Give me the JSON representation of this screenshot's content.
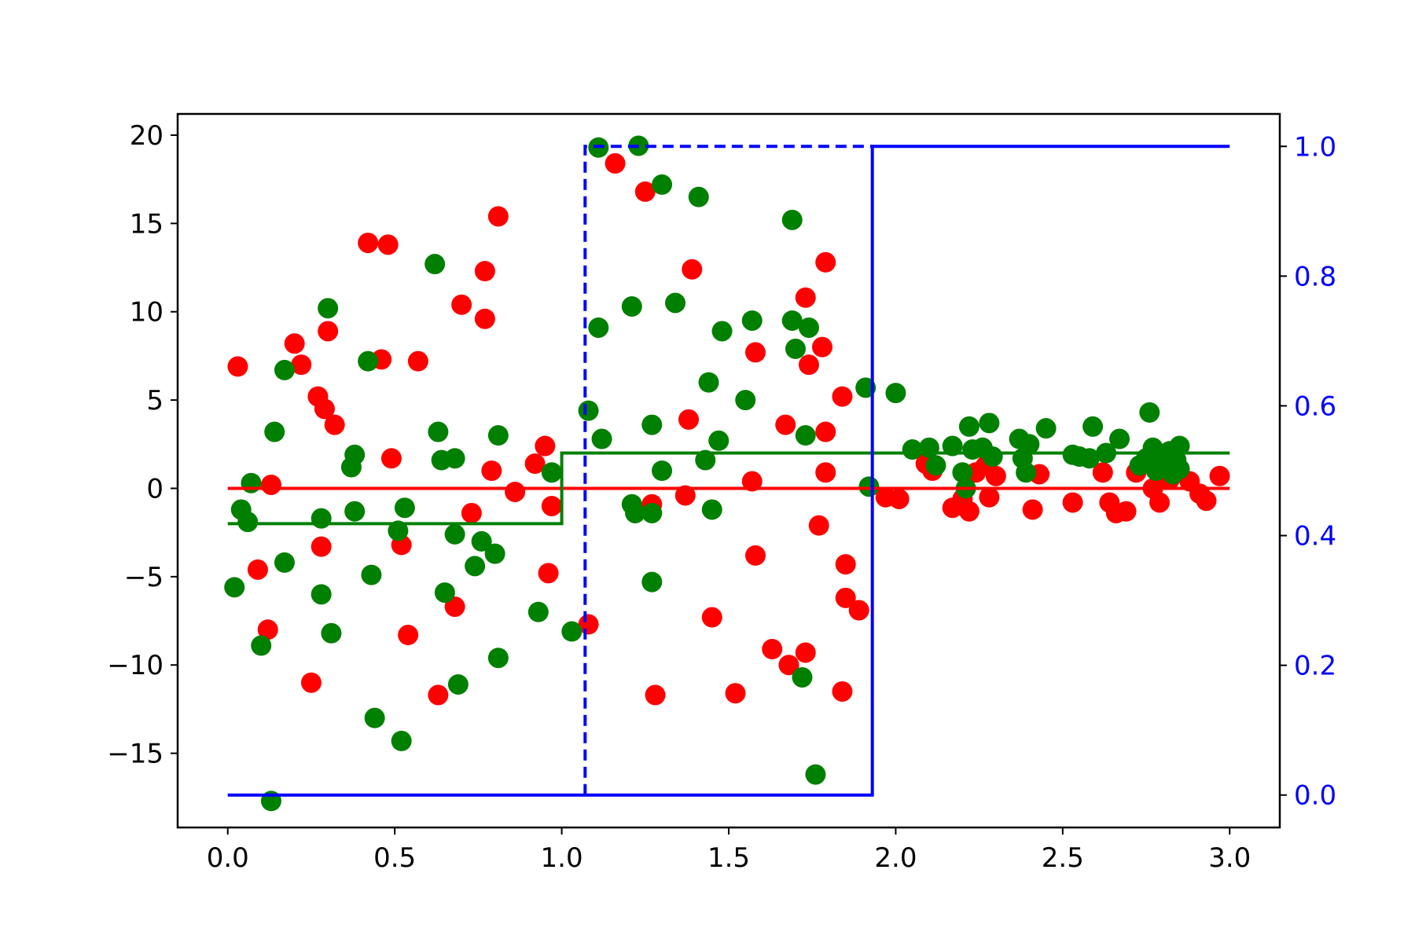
{
  "chart_data": {
    "type": "scatter",
    "title": "",
    "xlabel": "",
    "ylabel": "",
    "y2label": "",
    "grid": false,
    "legend": "none",
    "xlim": [
      -0.15,
      3.15
    ],
    "ylim": [
      -19.2,
      21.2
    ],
    "y2lim": [
      -0.05,
      1.05
    ],
    "xticks": [
      0.0,
      0.5,
      1.0,
      1.5,
      2.0,
      2.5,
      3.0
    ],
    "xtick_labels": [
      "0.0",
      "0.5",
      "1.0",
      "1.5",
      "2.0",
      "2.5",
      "3.0"
    ],
    "yticks": [
      20,
      15,
      10,
      5,
      0,
      -5,
      -10,
      -15
    ],
    "ytick_labels": [
      "20",
      "15",
      "10",
      "5",
      "0",
      "−5",
      "−10",
      "−15"
    ],
    "y2ticks": [
      1.0,
      0.8,
      0.6,
      0.4,
      0.2,
      0.0
    ],
    "y2tick_labels": [
      "1.0",
      "0.8",
      "0.6",
      "0.4",
      "0.2",
      "0.0"
    ],
    "colors": {
      "red": "#ff0000",
      "green": "#008000",
      "blue": "#0000ff",
      "axis": "#000000"
    },
    "series": [
      {
        "kind": "scatter",
        "axis": "left",
        "color": "#ff0000",
        "points": [
          [
            0.03,
            6.9
          ],
          [
            0.12,
            -8.0
          ],
          [
            0.13,
            0.2
          ],
          [
            0.09,
            -4.6
          ],
          [
            0.2,
            8.2
          ],
          [
            0.22,
            7.0
          ],
          [
            0.25,
            -11.0
          ],
          [
            0.27,
            5.2
          ],
          [
            0.29,
            4.5
          ],
          [
            0.3,
            8.9
          ],
          [
            0.32,
            3.6
          ],
          [
            0.28,
            -3.3
          ],
          [
            0.42,
            13.9
          ],
          [
            0.46,
            7.3
          ],
          [
            0.48,
            13.8
          ],
          [
            0.49,
            1.7
          ],
          [
            0.52,
            -3.2
          ],
          [
            0.54,
            -8.3
          ],
          [
            0.57,
            7.2
          ],
          [
            0.63,
            -11.7
          ],
          [
            0.68,
            -6.7
          ],
          [
            0.7,
            10.4
          ],
          [
            0.73,
            -1.4
          ],
          [
            0.77,
            9.6
          ],
          [
            0.77,
            12.3
          ],
          [
            0.79,
            1.0
          ],
          [
            0.81,
            15.4
          ],
          [
            0.86,
            -0.2
          ],
          [
            0.92,
            1.4
          ],
          [
            0.95,
            2.4
          ],
          [
            0.96,
            -4.8
          ],
          [
            0.97,
            -1.0
          ],
          [
            1.08,
            -7.7
          ],
          [
            1.16,
            18.4
          ],
          [
            1.25,
            16.8
          ],
          [
            1.27,
            -0.9
          ],
          [
            1.28,
            -11.7
          ],
          [
            1.37,
            -0.4
          ],
          [
            1.38,
            3.9
          ],
          [
            1.39,
            12.4
          ],
          [
            1.45,
            -7.3
          ],
          [
            1.52,
            -11.6
          ],
          [
            1.57,
            0.4
          ],
          [
            1.58,
            -3.8
          ],
          [
            1.58,
            7.7
          ],
          [
            1.63,
            -9.1
          ],
          [
            1.67,
            3.6
          ],
          [
            1.68,
            -10.0
          ],
          [
            1.73,
            -9.3
          ],
          [
            1.73,
            10.8
          ],
          [
            1.74,
            7.0
          ],
          [
            1.77,
            -2.1
          ],
          [
            1.78,
            8.0
          ],
          [
            1.79,
            0.9
          ],
          [
            1.79,
            3.2
          ],
          [
            1.79,
            12.8
          ],
          [
            1.84,
            5.2
          ],
          [
            1.84,
            -11.5
          ],
          [
            1.85,
            -4.3
          ],
          [
            1.85,
            -6.2
          ],
          [
            1.89,
            -6.9
          ],
          [
            1.97,
            -0.5
          ],
          [
            2.01,
            -0.6
          ],
          [
            2.09,
            1.4
          ],
          [
            2.11,
            1.0
          ],
          [
            2.17,
            -1.1
          ],
          [
            2.2,
            -0.6
          ],
          [
            2.22,
            -1.3
          ],
          [
            2.24,
            0.9
          ],
          [
            2.27,
            1.3
          ],
          [
            2.28,
            -0.5
          ],
          [
            2.3,
            0.7
          ],
          [
            2.41,
            -1.2
          ],
          [
            2.43,
            0.8
          ],
          [
            2.53,
            -0.8
          ],
          [
            2.62,
            0.9
          ],
          [
            2.64,
            -0.8
          ],
          [
            2.66,
            -1.4
          ],
          [
            2.69,
            -1.3
          ],
          [
            2.72,
            0.9
          ],
          [
            2.77,
            0.0
          ],
          [
            2.79,
            -0.8
          ],
          [
            2.82,
            0.5
          ],
          [
            2.88,
            0.4
          ],
          [
            2.91,
            -0.3
          ],
          [
            2.93,
            -0.7
          ],
          [
            2.97,
            0.7
          ]
        ]
      },
      {
        "kind": "scatter",
        "axis": "left",
        "color": "#008000",
        "points": [
          [
            0.02,
            -5.6
          ],
          [
            0.04,
            -1.2
          ],
          [
            0.06,
            -1.9
          ],
          [
            0.07,
            0.3
          ],
          [
            0.1,
            -8.9
          ],
          [
            0.13,
            -17.7
          ],
          [
            0.14,
            3.2
          ],
          [
            0.17,
            6.7
          ],
          [
            0.17,
            -4.2
          ],
          [
            0.28,
            -1.7
          ],
          [
            0.28,
            -6.0
          ],
          [
            0.3,
            10.2
          ],
          [
            0.31,
            -8.2
          ],
          [
            0.37,
            1.2
          ],
          [
            0.38,
            1.9
          ],
          [
            0.38,
            -1.3
          ],
          [
            0.42,
            7.2
          ],
          [
            0.43,
            -4.9
          ],
          [
            0.44,
            -13.0
          ],
          [
            0.51,
            -2.4
          ],
          [
            0.52,
            -14.3
          ],
          [
            0.53,
            -1.1
          ],
          [
            0.62,
            12.7
          ],
          [
            0.63,
            3.2
          ],
          [
            0.64,
            1.6
          ],
          [
            0.65,
            -5.9
          ],
          [
            0.68,
            1.7
          ],
          [
            0.68,
            -2.6
          ],
          [
            0.69,
            -11.1
          ],
          [
            0.74,
            -4.4
          ],
          [
            0.76,
            -3.0
          ],
          [
            0.81,
            3.0
          ],
          [
            0.8,
            -3.7
          ],
          [
            0.81,
            -9.6
          ],
          [
            0.93,
            -7.0
          ],
          [
            0.97,
            0.9
          ],
          [
            1.03,
            -8.1
          ],
          [
            1.08,
            4.4
          ],
          [
            1.11,
            19.3
          ],
          [
            1.11,
            9.1
          ],
          [
            1.12,
            2.8
          ],
          [
            1.21,
            10.3
          ],
          [
            1.23,
            19.4
          ],
          [
            1.21,
            -0.9
          ],
          [
            1.22,
            -1.4
          ],
          [
            1.27,
            3.6
          ],
          [
            1.27,
            -1.4
          ],
          [
            1.27,
            -5.3
          ],
          [
            1.3,
            17.2
          ],
          [
            1.3,
            1.0
          ],
          [
            1.34,
            10.5
          ],
          [
            1.41,
            16.5
          ],
          [
            1.43,
            1.6
          ],
          [
            1.44,
            6.0
          ],
          [
            1.45,
            -1.2
          ],
          [
            1.47,
            2.7
          ],
          [
            1.48,
            8.9
          ],
          [
            1.55,
            5.0
          ],
          [
            1.57,
            9.5
          ],
          [
            1.69,
            15.2
          ],
          [
            1.69,
            9.5
          ],
          [
            1.7,
            7.9
          ],
          [
            1.72,
            -10.7
          ],
          [
            1.73,
            3.0
          ],
          [
            1.74,
            9.1
          ],
          [
            1.76,
            -16.2
          ],
          [
            1.91,
            5.7
          ],
          [
            1.92,
            0.1
          ],
          [
            2.0,
            5.4
          ],
          [
            2.05,
            2.2
          ],
          [
            2.1,
            2.3
          ],
          [
            2.12,
            1.3
          ],
          [
            2.17,
            2.4
          ],
          [
            2.2,
            0.9
          ],
          [
            2.21,
            0.0
          ],
          [
            2.22,
            3.5
          ],
          [
            2.23,
            2.2
          ],
          [
            2.26,
            2.3
          ],
          [
            2.28,
            3.7
          ],
          [
            2.29,
            1.8
          ],
          [
            2.37,
            2.8
          ],
          [
            2.38,
            1.7
          ],
          [
            2.39,
            0.9
          ],
          [
            2.4,
            2.5
          ],
          [
            2.45,
            3.4
          ],
          [
            2.53,
            1.9
          ],
          [
            2.55,
            1.8
          ],
          [
            2.58,
            1.7
          ],
          [
            2.59,
            3.5
          ],
          [
            2.63,
            2.0
          ],
          [
            2.67,
            2.8
          ],
          [
            2.73,
            1.3
          ],
          [
            2.75,
            1.7
          ],
          [
            2.76,
            4.3
          ],
          [
            2.77,
            2.3
          ],
          [
            2.78,
            1.0
          ],
          [
            2.8,
            1.4
          ],
          [
            2.82,
            2.1
          ],
          [
            2.83,
            0.8
          ],
          [
            2.84,
            1.6
          ],
          [
            2.85,
            2.4
          ],
          [
            2.85,
            1.1
          ]
        ]
      },
      {
        "kind": "step",
        "axis": "left",
        "color": "#ff0000",
        "dash": false,
        "points": [
          [
            0.0,
            0.0
          ],
          [
            3.0,
            0.0
          ]
        ]
      },
      {
        "kind": "step",
        "axis": "left",
        "color": "#008000",
        "dash": false,
        "points": [
          [
            0.0,
            -2.0
          ],
          [
            1.0,
            -2.0
          ],
          [
            1.0,
            2.0
          ],
          [
            3.0,
            2.0
          ]
        ]
      },
      {
        "kind": "step",
        "axis": "right",
        "color": "#0000ff",
        "dash": false,
        "points": [
          [
            0.0,
            0.0
          ],
          [
            1.93,
            0.0
          ],
          [
            1.93,
            1.0
          ],
          [
            3.0,
            1.0
          ]
        ]
      },
      {
        "kind": "step",
        "axis": "right",
        "color": "#0000ff",
        "dash": true,
        "points": [
          [
            1.07,
            0.0
          ],
          [
            1.07,
            1.0
          ],
          [
            1.93,
            1.0
          ]
        ]
      }
    ]
  }
}
